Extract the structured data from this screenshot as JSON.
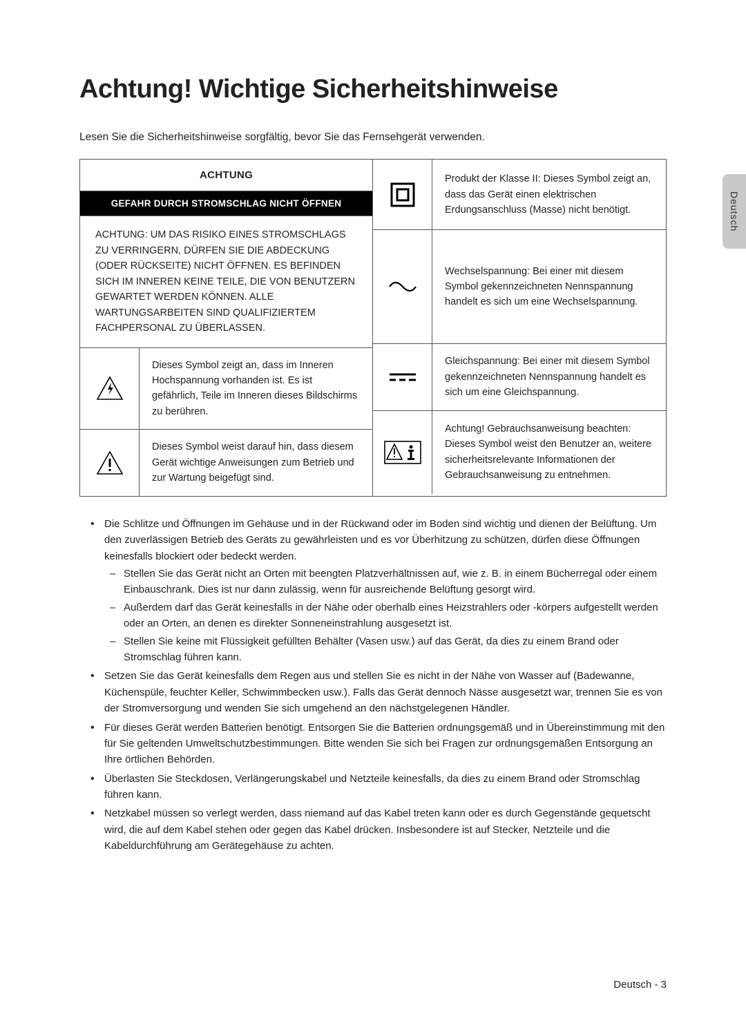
{
  "page": {
    "title": "Achtung! Wichtige Sicherheitshinweise",
    "intro": "Lesen Sie die Sicherheitshinweise sorgfältig, bevor Sie das Fernsehgerät verwenden.",
    "footer": "Deutsch - 3",
    "side_tab": "Deutsch"
  },
  "table": {
    "achtung_header": "ACHTUNG",
    "black_bar": "GEFAHR DURCH STROMSCHLAG NICHT ÖFFNEN",
    "warning_block": "ACHTUNG: UM DAS RISIKO EINES STROMSCHLAGS ZU VERRINGERN, DÜRFEN SIE DIE ABDECKUNG (ODER RÜCKSEITE) NICHT ÖFFNEN. ES BEFINDEN SICH IM INNEREN KEINE TEILE, DIE VON BENUTZERN GEWARTET WERDEN KÖNNEN. ALLE WARTUNGSARBEITEN SIND QUALIFIZIERTEM FACHPERSONAL ZU ÜBERLASSEN.",
    "left_rows": [
      {
        "icon": "bolt-triangle",
        "text": "Dieses Symbol zeigt an, dass im Inneren Hochspannung vorhanden ist. Es ist gefährlich, Teile im Inneren dieses Bildschirms zu berühren."
      },
      {
        "icon": "exclaim-triangle",
        "text": "Dieses Symbol weist darauf hin, dass diesem Gerät wichtige Anweisungen zum Betrieb und zur Wartung beigefügt sind."
      }
    ],
    "right_rows": [
      {
        "icon": "class-ii",
        "text": "Produkt der Klasse II: Dieses Symbol zeigt an, dass das Gerät einen elektrischen Erdungsanschluss (Masse) nicht benötigt."
      },
      {
        "icon": "ac-wave",
        "text": "Wechselspannung: Bei einer mit diesem Symbol gekennzeichneten Nennspannung handelt es sich um eine Wechselspannung."
      },
      {
        "icon": "dc-dash",
        "text": "Gleichspannung: Bei einer mit diesem Symbol gekennzeichneten Nennspannung handelt es sich um eine Gleichspannung."
      },
      {
        "icon": "manual-info",
        "text": "Achtung! Gebrauchsanweisung beachten: Dieses Symbol weist den Benutzer an, weitere sicherheitsrelevante Informationen der Gebrauchsanweisung zu entnehmen."
      }
    ]
  },
  "bullets": [
    {
      "text": "Die Schlitze und Öffnungen im Gehäuse und in der Rückwand oder im Boden sind wichtig und dienen der Belüftung. Um den zuverlässigen Betrieb des Geräts zu gewährleisten und es vor Überhitzung zu schützen, dürfen diese Öffnungen keinesfalls blockiert oder bedeckt werden.",
      "sub": [
        "Stellen Sie das Gerät nicht an Orten mit beengten Platzverhältnissen auf, wie z. B. in einem Bücherregal oder einem Einbauschrank. Dies ist nur dann zulässig, wenn für ausreichende Belüftung gesorgt wird.",
        "Außerdem darf das Gerät keinesfalls in der Nähe oder oberhalb eines Heizstrahlers oder -körpers aufgestellt werden oder an Orten, an denen es direkter Sonneneinstrahlung ausgesetzt ist.",
        "Stellen Sie keine mit Flüssigkeit gefüllten Behälter (Vasen usw.) auf das Gerät, da dies zu einem Brand oder Stromschlag führen kann."
      ]
    },
    {
      "text": "Setzen Sie das Gerät keinesfalls dem Regen aus und stellen Sie es nicht in der Nähe von Wasser auf (Badewanne, Küchenspüle, feuchter Keller, Schwimmbecken usw.). Falls das Gerät dennoch Nässe ausgesetzt war, trennen Sie es von der Stromversorgung und wenden Sie sich umgehend an den nächstgelegenen Händler."
    },
    {
      "text": "Für dieses Gerät werden Batterien benötigt. Entsorgen Sie die Batterien ordnungsgemäß und in Übereinstimmung mit den für Sie geltenden Umweltschutzbestimmungen. Bitte wenden Sie sich bei Fragen zur ordnungsgemäßen Entsorgung an Ihre örtlichen Behörden."
    },
    {
      "text": "Überlasten Sie Steckdosen, Verlängerungskabel und Netzteile keinesfalls, da dies zu einem Brand oder Stromschlag führen kann."
    },
    {
      "text": "Netzkabel müssen so verlegt werden, dass niemand auf das Kabel treten kann oder es durch Gegenstände gequetscht wird, die auf dem Kabel stehen oder gegen das Kabel drücken. Insbesondere ist auf Stecker, Netzteile und die Kabeldurchführung am Gerätegehäuse zu achten."
    }
  ]
}
